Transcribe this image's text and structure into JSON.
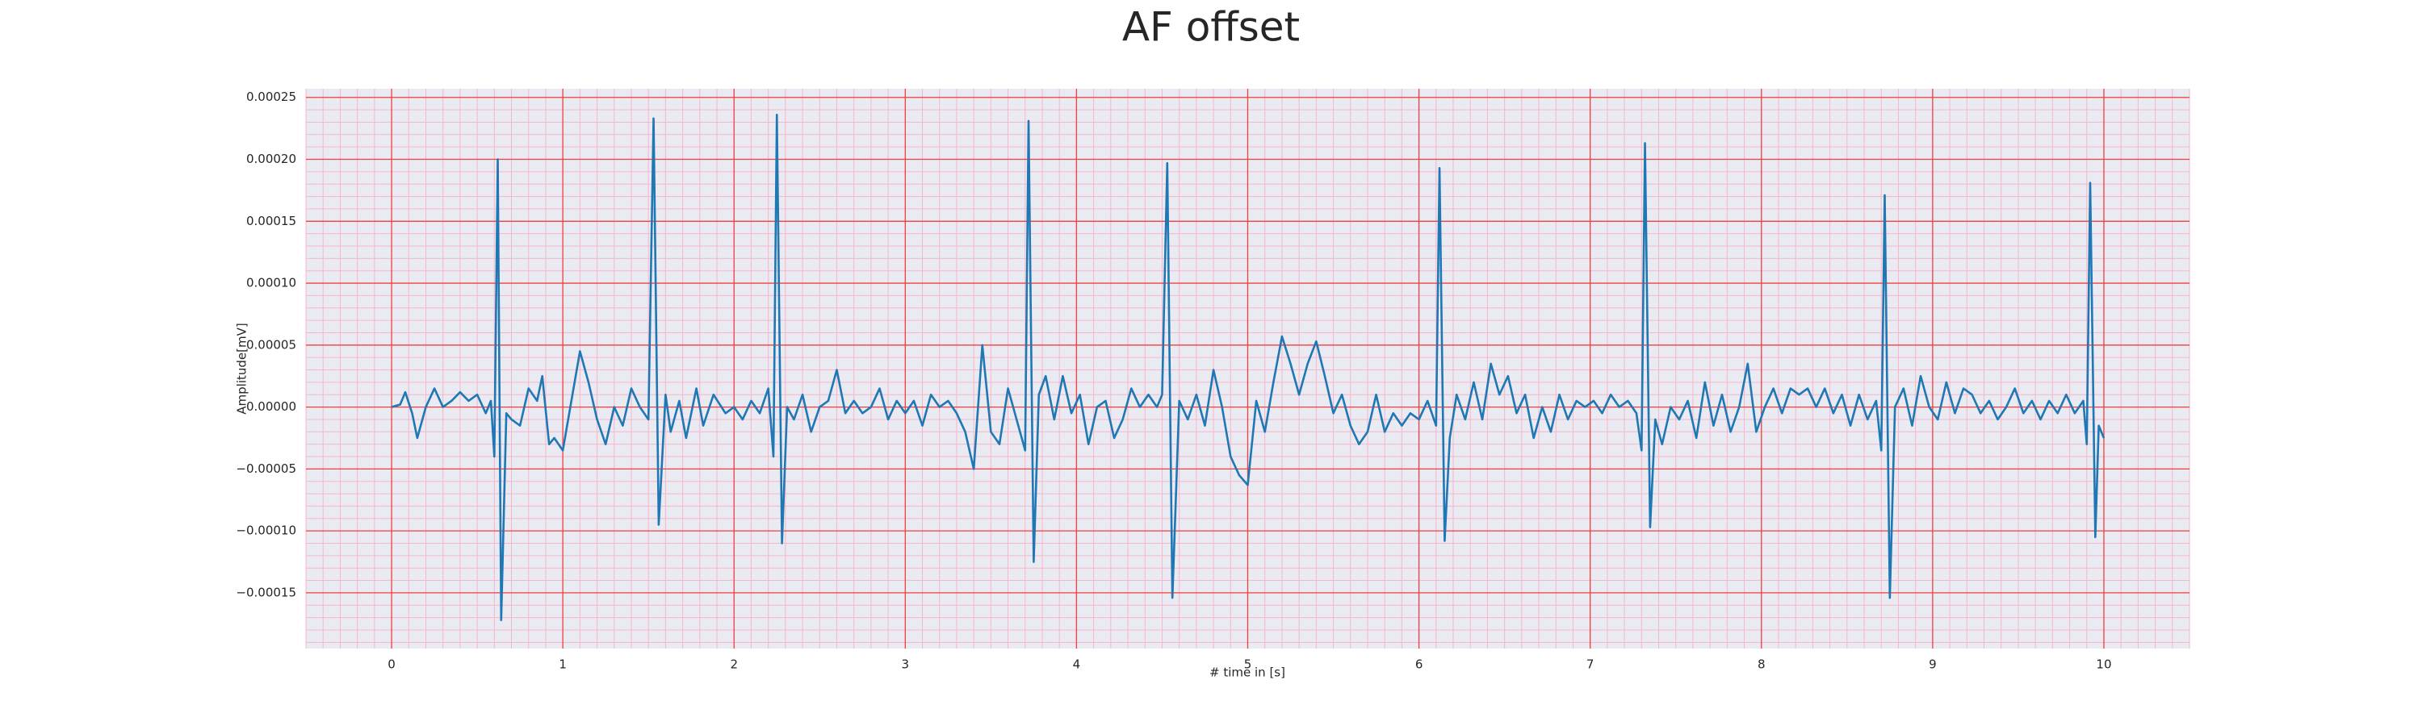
{
  "chart_data": {
    "type": "line",
    "title": "AF offset",
    "xlabel": "# time in [s]",
    "ylabel": "Amplitude[mV]",
    "color": "#1f77b4",
    "grid": true,
    "minor_grid": true,
    "xlim": [
      -0.5,
      10.5
    ],
    "ylim": [
      -0.000195,
      0.000257
    ],
    "xticks": [
      0,
      1,
      2,
      3,
      4,
      5,
      6,
      7,
      8,
      9,
      10
    ],
    "yticks": [
      0.00025,
      {
        "value": 0.0002,
        "label": "0.00020"
      },
      {
        "value": 0.00015,
        "label": "0.00015"
      },
      {
        "value": 0.0001,
        "label": "0.00010"
      },
      5e-05,
      {
        "value": 0,
        "label": "0.00000"
      },
      {
        "value": -5e-05,
        "label": "−0.00005"
      },
      {
        "value": -0.0001,
        "label": "−0.00010"
      },
      {
        "value": -0.00015,
        "label": "−0.00015"
      }
    ],
    "x": [
      0,
      0.05,
      0.08,
      0.12,
      0.15,
      0.2,
      0.25,
      0.3,
      0.35,
      0.4,
      0.45,
      0.5,
      0.55,
      0.58,
      0.6,
      0.62,
      0.64,
      0.67,
      0.7,
      0.75,
      0.8,
      0.85,
      0.88,
      0.92,
      0.95,
      1.0,
      1.05,
      1.1,
      1.15,
      1.2,
      1.25,
      1.3,
      1.35,
      1.4,
      1.45,
      1.5,
      1.53,
      1.56,
      1.6,
      1.63,
      1.68,
      1.72,
      1.78,
      1.82,
      1.88,
      1.95,
      2.0,
      2.05,
      2.1,
      2.15,
      2.2,
      2.23,
      2.25,
      2.28,
      2.31,
      2.35,
      2.4,
      2.45,
      2.5,
      2.55,
      2.6,
      2.65,
      2.7,
      2.75,
      2.8,
      2.85,
      2.9,
      2.95,
      3.0,
      3.05,
      3.1,
      3.15,
      3.2,
      3.25,
      3.3,
      3.35,
      3.4,
      3.45,
      3.5,
      3.55,
      3.6,
      3.65,
      3.7,
      3.72,
      3.75,
      3.78,
      3.82,
      3.87,
      3.92,
      3.97,
      4.02,
      4.07,
      4.12,
      4.17,
      4.22,
      4.27,
      4.32,
      4.37,
      4.42,
      4.47,
      4.5,
      4.53,
      4.56,
      4.6,
      4.65,
      4.7,
      4.75,
      4.8,
      4.85,
      4.9,
      4.95,
      5.0,
      5.05,
      5.1,
      5.15,
      5.2,
      5.25,
      5.3,
      5.35,
      5.4,
      5.45,
      5.5,
      5.55,
      5.6,
      5.65,
      5.7,
      5.75,
      5.8,
      5.85,
      5.9,
      5.95,
      6.0,
      6.05,
      6.1,
      6.12,
      6.15,
      6.18,
      6.22,
      6.27,
      6.32,
      6.37,
      6.42,
      6.47,
      6.52,
      6.57,
      6.62,
      6.67,
      6.72,
      6.77,
      6.82,
      6.87,
      6.92,
      6.97,
      7.02,
      7.07,
      7.12,
      7.17,
      7.22,
      7.27,
      7.3,
      7.32,
      7.35,
      7.38,
      7.42,
      7.47,
      7.52,
      7.57,
      7.62,
      7.67,
      7.72,
      7.77,
      7.82,
      7.87,
      7.92,
      7.97,
      8.02,
      8.07,
      8.12,
      8.17,
      8.22,
      8.27,
      8.32,
      8.37,
      8.42,
      8.47,
      8.52,
      8.57,
      8.62,
      8.67,
      8.7,
      8.72,
      8.75,
      8.78,
      8.83,
      8.88,
      8.93,
      8.98,
      9.03,
      9.08,
      9.13,
      9.18,
      9.23,
      9.28,
      9.33,
      9.38,
      9.43,
      9.48,
      9.53,
      9.58,
      9.63,
      9.68,
      9.73,
      9.78,
      9.83,
      9.88,
      9.9,
      9.92,
      9.95,
      9.97,
      10.0
    ],
    "values": [
      0,
      2e-06,
      1.2e-05,
      -5e-06,
      -2.5e-05,
      0,
      1.5e-05,
      0,
      5e-06,
      1.2e-05,
      5e-06,
      1e-05,
      -5e-06,
      5e-06,
      -4e-05,
      0.0002,
      -0.000172,
      -5e-06,
      -1e-05,
      -1.5e-05,
      1.5e-05,
      5e-06,
      2.5e-05,
      -3e-05,
      -2.5e-05,
      -3.5e-05,
      5e-06,
      4.5e-05,
      2e-05,
      -1e-05,
      -3e-05,
      0,
      -1.5e-05,
      1.5e-05,
      0,
      -1e-05,
      0.000233,
      -9.5e-05,
      1e-05,
      -2e-05,
      5e-06,
      -2.5e-05,
      1.5e-05,
      -1.5e-05,
      1e-05,
      -5e-06,
      0,
      -1e-05,
      5e-06,
      -5e-06,
      1.5e-05,
      -4e-05,
      0.000236,
      -0.00011,
      0,
      -1e-05,
      1e-05,
      -2e-05,
      0,
      5e-06,
      3e-05,
      -5e-06,
      5e-06,
      -5e-06,
      0,
      1.5e-05,
      -1e-05,
      5e-06,
      -5e-06,
      5e-06,
      -1.5e-05,
      1e-05,
      0,
      5e-06,
      -5e-06,
      -2e-05,
      -5e-05,
      5e-05,
      -2e-05,
      -3e-05,
      1.5e-05,
      -1e-05,
      -3.5e-05,
      0.000231,
      -0.000125,
      1e-05,
      2.5e-05,
      -1e-05,
      2.5e-05,
      -5e-06,
      1e-05,
      -3e-05,
      0,
      5e-06,
      -2.5e-05,
      -1e-05,
      1.5e-05,
      0,
      1e-05,
      0,
      1e-05,
      0.000197,
      -0.000154,
      5e-06,
      -1e-05,
      1e-05,
      -1.5e-05,
      3e-05,
      0,
      -4e-05,
      -5.5e-05,
      -6.3e-05,
      5e-06,
      -2e-05,
      2e-05,
      5.7e-05,
      3.5e-05,
      1e-05,
      3.5e-05,
      5.3e-05,
      2.5e-05,
      -5e-06,
      1e-05,
      -1.5e-05,
      -3e-05,
      -2e-05,
      1e-05,
      -2e-05,
      -5e-06,
      -1.5e-05,
      -5e-06,
      -1e-05,
      5e-06,
      -1.5e-05,
      0.000193,
      -0.000108,
      -2.5e-05,
      1e-05,
      -1e-05,
      2e-05,
      -1e-05,
      3.5e-05,
      1e-05,
      2.5e-05,
      -5e-06,
      1e-05,
      -2.5e-05,
      0,
      -2e-05,
      1e-05,
      -1e-05,
      5e-06,
      0,
      5e-06,
      -5e-06,
      1e-05,
      0,
      5e-06,
      -5e-06,
      -3.5e-05,
      0.000213,
      -9.7e-05,
      -1e-05,
      -3e-05,
      0,
      -1e-05,
      5e-06,
      -2.5e-05,
      2e-05,
      -1.5e-05,
      1e-05,
      -2e-05,
      0,
      3.5e-05,
      -2e-05,
      0,
      1.5e-05,
      -5e-06,
      1.5e-05,
      1e-05,
      1.5e-05,
      0,
      1.5e-05,
      -5e-06,
      1e-05,
      -1.5e-05,
      1e-05,
      -1e-05,
      5e-06,
      -3.5e-05,
      0.000171,
      -0.000154,
      0,
      1.5e-05,
      -1.5e-05,
      2.5e-05,
      0,
      -1e-05,
      2e-05,
      -5e-06,
      1.5e-05,
      1e-05,
      -5e-06,
      5e-06,
      -1e-05,
      0,
      1.5e-05,
      -5e-06,
      5e-06,
      -1e-05,
      5e-06,
      -5e-06,
      1e-05,
      -5e-06,
      5e-06,
      -3e-05,
      0.000181,
      -0.000105,
      -1.5e-05,
      -2.5e-05
    ]
  }
}
